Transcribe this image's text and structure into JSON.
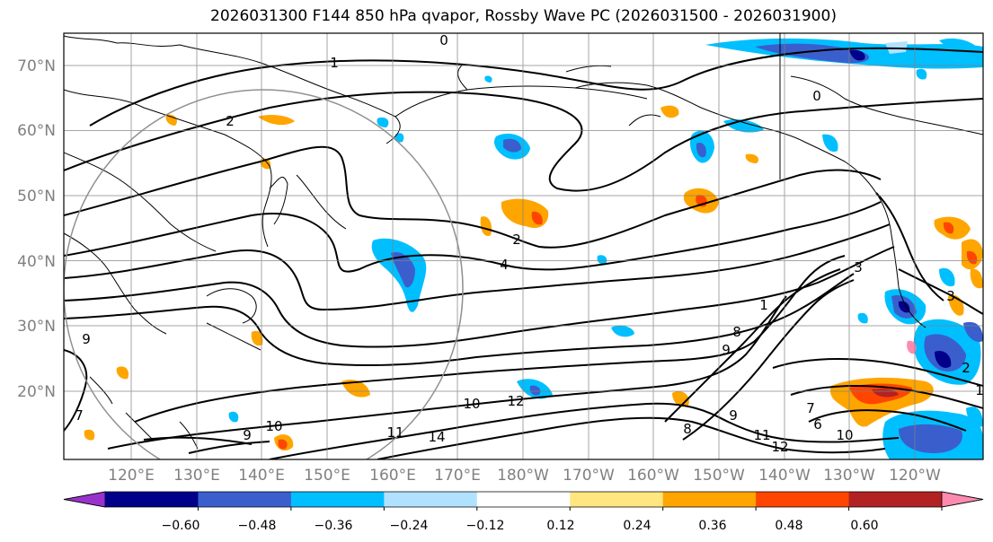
{
  "title": "2026031300 F144 850 hPa qvapor, Rossby Wave PC (2026031500 - 2026031900)",
  "lat_ticks": [
    "70°N",
    "60°N",
    "50°N",
    "40°N",
    "30°N",
    "20°N"
  ],
  "lon_ticks": [
    "120°E",
    "130°E",
    "140°E",
    "150°E",
    "160°E",
    "170°E",
    "180°W",
    "170°W",
    "160°W",
    "150°W",
    "140°W",
    "130°W",
    "120°W"
  ],
  "colorbar": {
    "labels": [
      "−0.60",
      "−0.48",
      "−0.36",
      "−0.24",
      "−0.12",
      "0.12",
      "0.24",
      "0.36",
      "0.48",
      "0.60"
    ],
    "colors": [
      "#9932cc",
      "#00008b",
      "#3a5fcd",
      "#00bfff",
      "#b0e2ff",
      "#ffffff",
      "#ffe680",
      "#ffa500",
      "#ff4500",
      "#b22222",
      "#ff8ab0"
    ]
  },
  "contour_labels": [
    "0",
    "1",
    "2",
    "0",
    "2",
    "4",
    "7",
    "8",
    "9",
    "3",
    "1",
    "9",
    "10",
    "12",
    "14",
    "11",
    "9",
    "10",
    "9",
    "11",
    "12",
    "10",
    "8",
    "6",
    "7",
    "2",
    "3",
    "1"
  ],
  "colors": {
    "contour": "#000000",
    "grid": "#808080",
    "coast": "#000000"
  }
}
